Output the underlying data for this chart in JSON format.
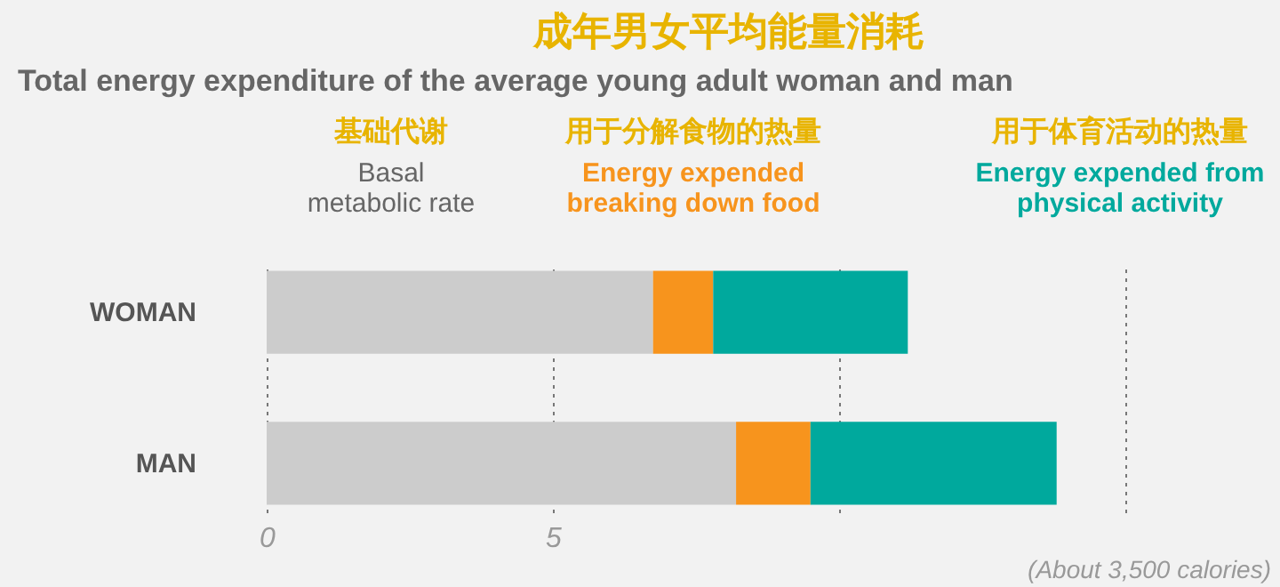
{
  "chart_data": {
    "type": "bar",
    "orientation": "horizontal",
    "stacked": true,
    "title": "成年男女平均能量消耗",
    "subtitle": "Total energy expenditure of the average young adult woman and man",
    "categories": [
      "WOMAN",
      "MAN"
    ],
    "series": [
      {
        "name": "Basal\nmetabolic rate",
        "color": "#cccccc",
        "values": [
          6.75,
          8.2
        ]
      },
      {
        "name": "Energy expended\nbreaking down food",
        "color": "#f7941d",
        "values": [
          1.05,
          1.3
        ]
      },
      {
        "name": "Energy expended from\nphysical activity",
        "color": "#00a99d",
        "values": [
          3.4,
          4.3
        ]
      }
    ],
    "xlim": [
      0,
      15
    ],
    "xticks": [
      0,
      5,
      {
        "value": 10,
        "label": null
      },
      {
        "value": 15,
        "label": null
      }
    ],
    "grid": "x",
    "annotations": [
      "基础代谢",
      "用于分解食物的热量",
      "用于体育活动的热量",
      "(About 3,500 calories)"
    ]
  }
}
